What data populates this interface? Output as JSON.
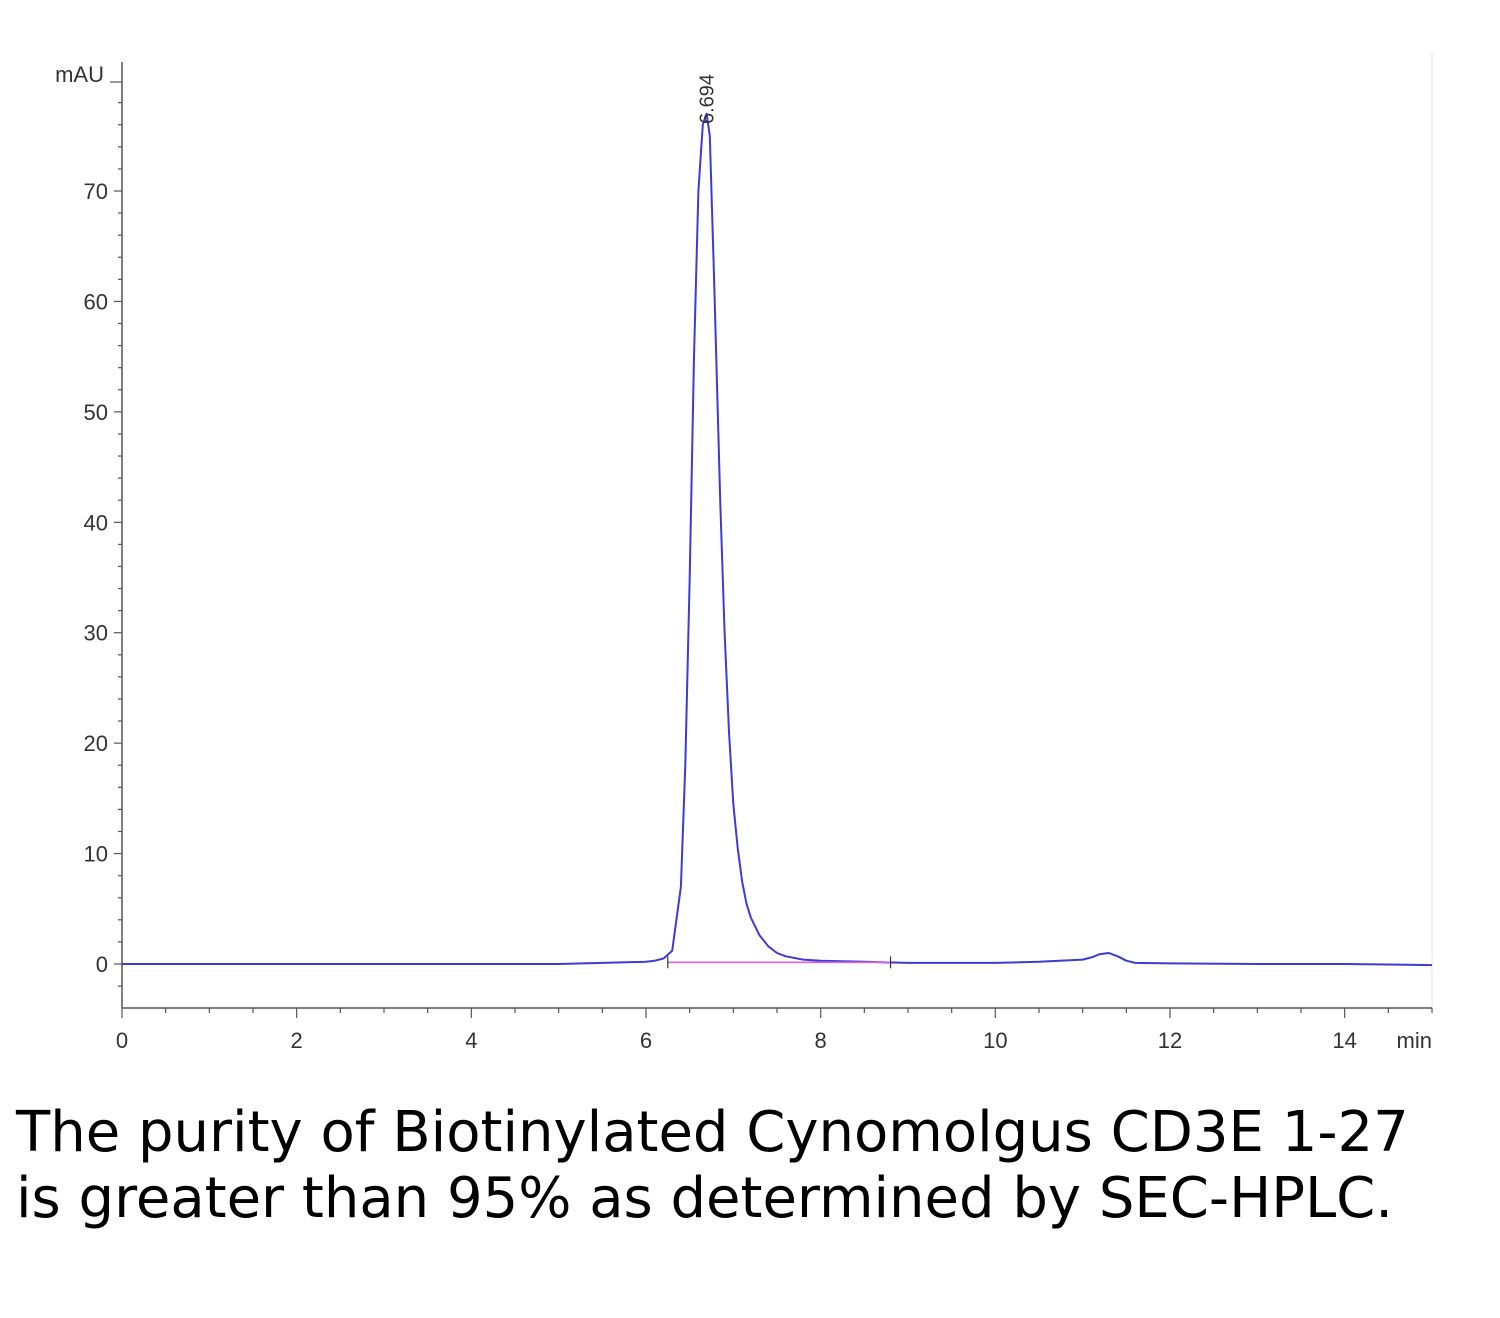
{
  "chart_data": {
    "type": "line",
    "title": "",
    "xlabel": "min",
    "ylabel": "mAU",
    "xlim": [
      0,
      15
    ],
    "ylim": [
      -4,
      80
    ],
    "x_ticks": [
      "0",
      "2",
      "4",
      "6",
      "8",
      "10",
      "12",
      "14"
    ],
    "y_ticks": [
      "0",
      "10",
      "20",
      "30",
      "40",
      "50",
      "60",
      "70"
    ],
    "grid": false,
    "series": [
      {
        "color": "#3b3bd6",
        "x": [
          0,
          2,
          4,
          5,
          5.5,
          6.0,
          6.1,
          6.2,
          6.3,
          6.4,
          6.45,
          6.5,
          6.55,
          6.6,
          6.65,
          6.694,
          6.73,
          6.78,
          6.85,
          6.9,
          6.95,
          7.0,
          7.05,
          7.1,
          7.15,
          7.2,
          7.3,
          7.4,
          7.5,
          7.6,
          7.8,
          8.0,
          8.5,
          9.0,
          10.0,
          10.5,
          11.0,
          11.1,
          11.2,
          11.3,
          11.4,
          11.5,
          11.6,
          12.0,
          13.0,
          14.0,
          15.0
        ],
        "y": [
          0,
          0,
          0,
          0,
          0.1,
          0.2,
          0.3,
          0.5,
          1.2,
          7,
          18,
          35,
          55,
          70,
          76,
          77,
          75,
          62,
          42,
          30,
          21,
          14.5,
          10.5,
          7.5,
          5.5,
          4.2,
          2.6,
          1.6,
          1.0,
          0.7,
          0.4,
          0.3,
          0.2,
          0.1,
          0.1,
          0.2,
          0.4,
          0.6,
          0.9,
          1.0,
          0.7,
          0.3,
          0.1,
          0.05,
          0.0,
          0.0,
          -0.1
        ]
      },
      {
        "color": "#e060e0",
        "x": [
          6.25,
          8.8
        ],
        "y": [
          0.15,
          0.15
        ]
      }
    ],
    "annotations": [
      {
        "text": "6.694",
        "x": 6.694
      }
    ]
  },
  "caption": "The purity of Biotinylated Cynomolgus CD3E 1-27 is greater than 95% as determined by SEC-HPLC."
}
